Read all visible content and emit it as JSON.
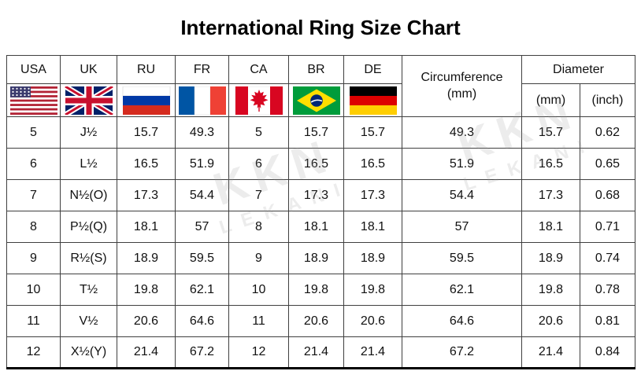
{
  "title": "International Ring Size Chart",
  "watermark": {
    "primary": "KKN",
    "secondary": "LEKANI"
  },
  "chart_data": {
    "type": "table",
    "title": "International Ring Size Chart",
    "header": {
      "countries": [
        "USA",
        "UK",
        "RU",
        "FR",
        "CA",
        "BR",
        "DE"
      ],
      "flags": [
        "usa-flag",
        "uk-flag",
        "russia-flag",
        "france-flag",
        "canada-flag",
        "brazil-flag",
        "germany-flag"
      ],
      "circumference_line1": "Circumference",
      "circumference_line2": "(mm)",
      "diameter": "Diameter",
      "diameter_units": [
        "(mm)",
        "(inch)"
      ]
    },
    "columns": [
      "USA",
      "UK",
      "RU",
      "FR",
      "CA",
      "BR",
      "DE",
      "Circumference (mm)",
      "Diameter (mm)",
      "Diameter (inch)"
    ],
    "rows": [
      [
        "5",
        "J½",
        "15.7",
        "49.3",
        "5",
        "15.7",
        "15.7",
        "49.3",
        "15.7",
        "0.62"
      ],
      [
        "6",
        "L½",
        "16.5",
        "51.9",
        "6",
        "16.5",
        "16.5",
        "51.9",
        "16.5",
        "0.65"
      ],
      [
        "7",
        "N½(O)",
        "17.3",
        "54.4",
        "7",
        "17.3",
        "17.3",
        "54.4",
        "17.3",
        "0.68"
      ],
      [
        "8",
        "P½(Q)",
        "18.1",
        "57",
        "8",
        "18.1",
        "18.1",
        "57",
        "18.1",
        "0.71"
      ],
      [
        "9",
        "R½(S)",
        "18.9",
        "59.5",
        "9",
        "18.9",
        "18.9",
        "59.5",
        "18.9",
        "0.74"
      ],
      [
        "10",
        "T½",
        "19.8",
        "62.1",
        "10",
        "19.8",
        "19.8",
        "62.1",
        "19.8",
        "0.78"
      ],
      [
        "11",
        "V½",
        "20.6",
        "64.6",
        "11",
        "20.6",
        "20.6",
        "64.6",
        "20.6",
        "0.81"
      ],
      [
        "12",
        "X½(Y)",
        "21.4",
        "67.2",
        "12",
        "21.4",
        "21.4",
        "67.2",
        "21.4",
        "0.84"
      ]
    ]
  }
}
